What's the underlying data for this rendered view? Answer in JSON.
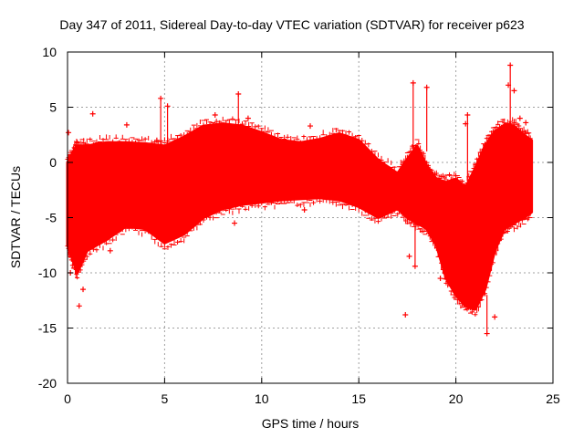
{
  "chart_data": {
    "type": "scatter",
    "title": "Day 347 of 2011, Sidereal Day-to-day VTEC variation (SDTVAR) for receiver p623",
    "xlabel": "GPS time / hours",
    "ylabel": "SDTVAR / TECUs",
    "xlim": [
      0,
      25
    ],
    "ylim": [
      -20,
      10
    ],
    "xticks": [
      0,
      5,
      10,
      15,
      20,
      25
    ],
    "yticks": [
      -20,
      -15,
      -10,
      -5,
      0,
      5,
      10
    ],
    "grid": true,
    "marker": "+",
    "color": "#ff0000",
    "envelope": {
      "x": [
        0,
        0.3,
        0.5,
        1,
        2,
        3,
        4,
        5,
        6,
        7,
        8,
        9,
        10,
        11,
        12,
        13,
        14,
        15,
        16,
        17,
        17.5,
        18,
        18.5,
        19,
        19.5,
        20,
        20.5,
        21,
        21.5,
        22,
        22.5,
        23,
        23.5,
        23.9
      ],
      "upper": [
        0,
        1,
        1.5,
        1.5,
        1.8,
        1.8,
        1.7,
        1.5,
        2.3,
        3.3,
        3.5,
        3.3,
        2.7,
        2,
        1.8,
        2.1,
        2.6,
        2.0,
        0.2,
        -1.0,
        0.3,
        1.5,
        -0.3,
        -1.5,
        -1.8,
        -1.5,
        -2.3,
        -0.5,
        1.5,
        2.8,
        3.4,
        3.3,
        2.5,
        2.0
      ],
      "lower": [
        -7.5,
        -9,
        -10,
        -8,
        -7,
        -5.8,
        -6.0,
        -7.3,
        -6.5,
        -5.0,
        -4.2,
        -3.8,
        -3.6,
        -3.4,
        -3.3,
        -3.2,
        -3.4,
        -4.0,
        -5.0,
        -4.2,
        -5.0,
        -5.5,
        -6.0,
        -7.5,
        -10.5,
        -12.0,
        -13.0,
        -13.3,
        -11.5,
        -8.0,
        -6.0,
        -5.5,
        -5.0,
        -4.5
      ]
    },
    "outliers": [
      {
        "x": 0.05,
        "y": 2.7
      },
      {
        "x": 0.15,
        "y": -10.0
      },
      {
        "x": 0.5,
        "y": 1.8
      },
      {
        "x": 0.6,
        "y": -13.0
      },
      {
        "x": 0.8,
        "y": -11.5
      },
      {
        "x": 1.3,
        "y": 4.4
      },
      {
        "x": 2.2,
        "y": -8.0
      },
      {
        "x": 3.05,
        "y": 3.4
      },
      {
        "x": 4.6,
        "y": 2.0
      },
      {
        "x": 4.8,
        "y": 5.8
      },
      {
        "x": 5.15,
        "y": 5.1
      },
      {
        "x": 7.6,
        "y": 4.3
      },
      {
        "x": 8.6,
        "y": -5.5
      },
      {
        "x": 8.8,
        "y": 6.2
      },
      {
        "x": 9.3,
        "y": 4.0
      },
      {
        "x": 12.2,
        "y": -4.3
      },
      {
        "x": 12.5,
        "y": 3.3
      },
      {
        "x": 17.4,
        "y": -13.8
      },
      {
        "x": 17.6,
        "y": -8.5
      },
      {
        "x": 17.8,
        "y": 7.2
      },
      {
        "x": 17.9,
        "y": -9.4
      },
      {
        "x": 18.5,
        "y": 6.8
      },
      {
        "x": 19.2,
        "y": -10.5
      },
      {
        "x": 20.5,
        "y": 3.5
      },
      {
        "x": 20.6,
        "y": 4.3
      },
      {
        "x": 21.6,
        "y": -15.5
      },
      {
        "x": 22.0,
        "y": -14.0
      },
      {
        "x": 22.7,
        "y": 7.0
      },
      {
        "x": 22.8,
        "y": 8.8
      },
      {
        "x": 23.0,
        "y": 6.5
      },
      {
        "x": 23.3,
        "y": 4.0
      },
      {
        "x": 23.6,
        "y": 3.6
      }
    ],
    "spikes": [
      {
        "x": 4.8,
        "y1": 0,
        "y2": 5.8
      },
      {
        "x": 5.15,
        "y1": 1.5,
        "y2": 5.1
      },
      {
        "x": 8.8,
        "y1": 1.5,
        "y2": 6.2
      },
      {
        "x": 17.8,
        "y1": -5,
        "y2": 7.2
      },
      {
        "x": 17.9,
        "y1": -9.4,
        "y2": -4
      },
      {
        "x": 18.5,
        "y1": 1,
        "y2": 6.8
      },
      {
        "x": 20.6,
        "y1": -2,
        "y2": 4.3
      },
      {
        "x": 22.8,
        "y1": 3,
        "y2": 8.8
      },
      {
        "x": 21.6,
        "y1": -15.5,
        "y2": -12
      }
    ]
  }
}
